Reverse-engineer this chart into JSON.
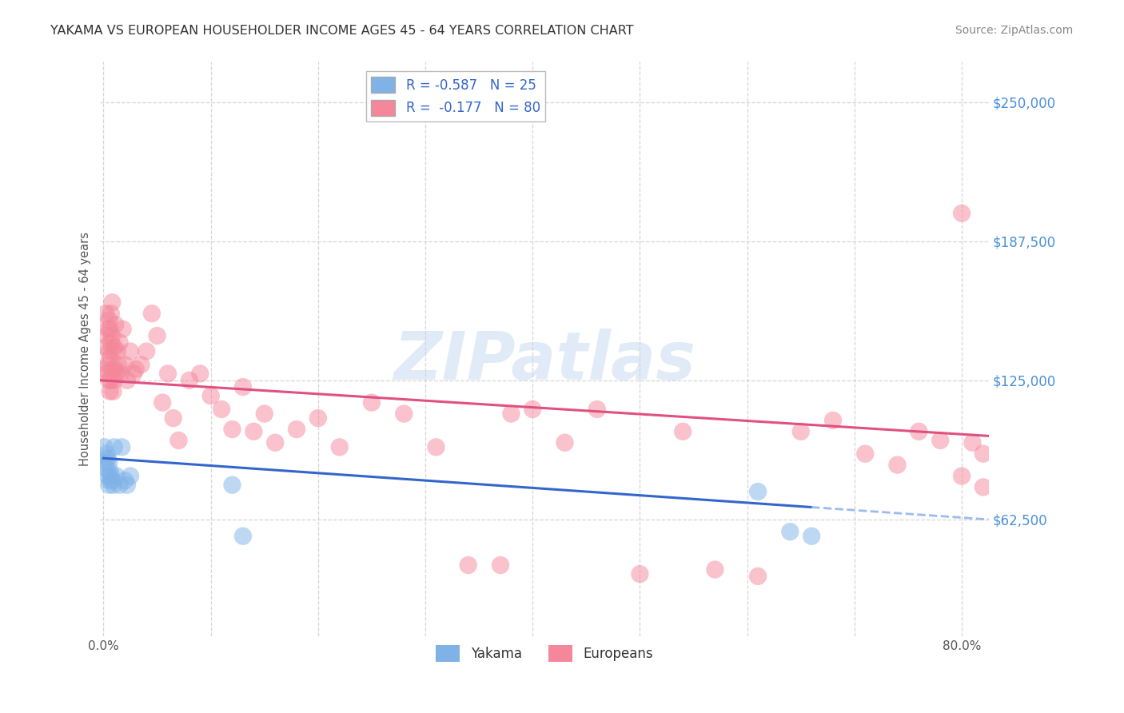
{
  "title": "YAKAMA VS EUROPEAN HOUSEHOLDER INCOME AGES 45 - 64 YEARS CORRELATION CHART",
  "source": "Source: ZipAtlas.com",
  "ylabel": "Householder Income Ages 45 - 64 years",
  "ytick_labels": [
    "$62,500",
    "$125,000",
    "$187,500",
    "$250,000"
  ],
  "ytick_values": [
    62500,
    125000,
    187500,
    250000
  ],
  "ymin": 10000,
  "ymax": 268000,
  "xmin": -0.003,
  "xmax": 0.825,
  "background_color": "#ffffff",
  "grid_color": "#cccccc",
  "watermark_text": "ZIPatlas",
  "title_color": "#333333",
  "yakama_color": "#7fb3e8",
  "europeans_color": "#f4879a",
  "trend_yakama_color": "#3366cc",
  "trend_europeans_color": "#e05080",
  "trend_yakama_dashed_color": "#99bbee",
  "legend_label_yakama": "R = -0.587   N = 25",
  "legend_label_europeans": "R =  -0.177   N = 80",
  "legend_color": "#3366cc",
  "bottom_legend_yakama": "Yakama",
  "bottom_legend_europeans": "Europeans",
  "yakama_points_x": [
    0.001,
    0.002,
    0.003,
    0.003,
    0.004,
    0.004,
    0.005,
    0.005,
    0.006,
    0.006,
    0.007,
    0.008,
    0.009,
    0.01,
    0.012,
    0.015,
    0.017,
    0.02,
    0.022,
    0.025,
    0.12,
    0.13,
    0.61,
    0.64,
    0.66
  ],
  "yakama_points_y": [
    95000,
    88000,
    92000,
    85000,
    90000,
    82000,
    88000,
    78000,
    84000,
    80000,
    82000,
    80000,
    78000,
    95000,
    82000,
    78000,
    95000,
    80000,
    78000,
    82000,
    78000,
    55000,
    75000,
    57000,
    55000
  ],
  "europeans_points_x": [
    0.001,
    0.002,
    0.002,
    0.003,
    0.003,
    0.004,
    0.004,
    0.005,
    0.005,
    0.005,
    0.006,
    0.006,
    0.006,
    0.007,
    0.007,
    0.007,
    0.008,
    0.008,
    0.008,
    0.009,
    0.009,
    0.01,
    0.01,
    0.011,
    0.011,
    0.012,
    0.013,
    0.014,
    0.015,
    0.016,
    0.018,
    0.02,
    0.022,
    0.025,
    0.028,
    0.03,
    0.035,
    0.04,
    0.045,
    0.05,
    0.055,
    0.06,
    0.065,
    0.07,
    0.08,
    0.09,
    0.1,
    0.11,
    0.12,
    0.13,
    0.14,
    0.15,
    0.16,
    0.18,
    0.2,
    0.22,
    0.25,
    0.28,
    0.31,
    0.34,
    0.37,
    0.8,
    0.4,
    0.43,
    0.46,
    0.5,
    0.54,
    0.57,
    0.61,
    0.65,
    0.68,
    0.71,
    0.74,
    0.76,
    0.78,
    0.8,
    0.81,
    0.82,
    0.38,
    0.82
  ],
  "europeans_points_y": [
    130000,
    140000,
    155000,
    128000,
    145000,
    132000,
    148000,
    125000,
    138000,
    152000,
    120000,
    135000,
    148000,
    125000,
    142000,
    155000,
    130000,
    145000,
    160000,
    120000,
    138000,
    125000,
    140000,
    130000,
    150000,
    128000,
    138000,
    132000,
    142000,
    128000,
    148000,
    132000,
    125000,
    138000,
    128000,
    130000,
    132000,
    138000,
    155000,
    145000,
    115000,
    128000,
    108000,
    98000,
    125000,
    128000,
    118000,
    112000,
    103000,
    122000,
    102000,
    110000,
    97000,
    103000,
    108000,
    95000,
    115000,
    110000,
    95000,
    42000,
    42000,
    200000,
    112000,
    97000,
    112000,
    38000,
    102000,
    40000,
    37000,
    102000,
    107000,
    92000,
    87000,
    102000,
    98000,
    82000,
    97000,
    92000,
    110000,
    77000
  ]
}
